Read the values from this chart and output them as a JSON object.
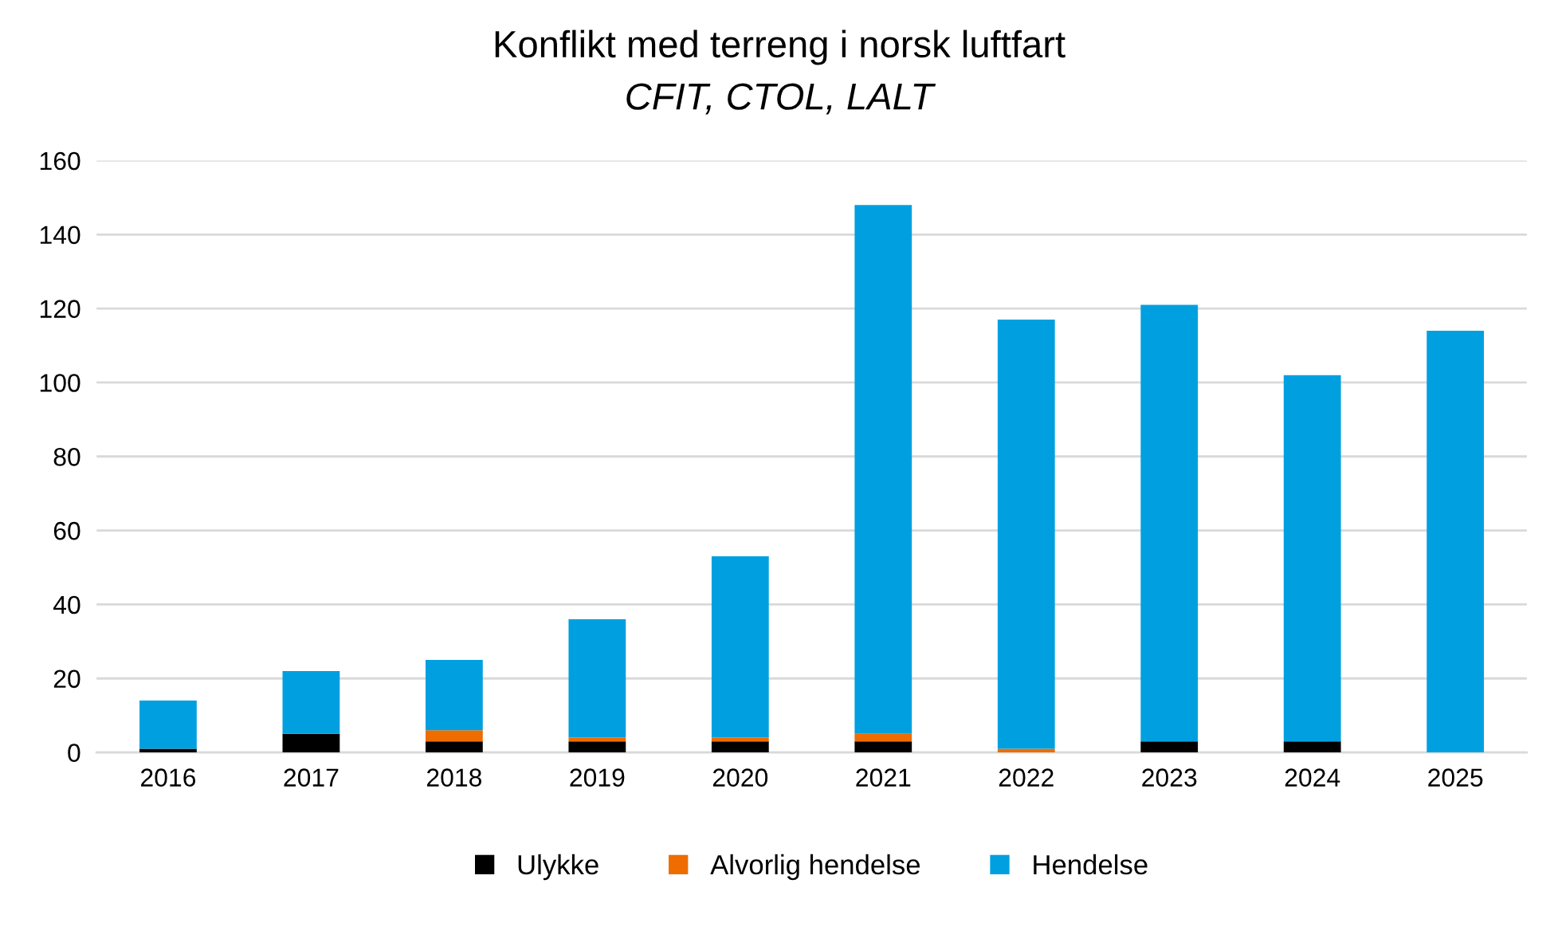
{
  "chart_data": {
    "type": "bar",
    "title": "Konflikt med terreng i norsk luftfart",
    "subtitle": "CFIT, CTOL, LALT",
    "categories": [
      "2016",
      "2017",
      "2018",
      "2019",
      "2020",
      "2021",
      "2022",
      "2023",
      "2024",
      "2025"
    ],
    "series": [
      {
        "name": "Ulykke",
        "color": "#000000",
        "values": [
          1,
          5,
          3,
          3,
          3,
          3,
          0,
          3,
          3,
          0
        ]
      },
      {
        "name": "Alvorlig hendelse",
        "color": "#ee6c00",
        "values": [
          0,
          0,
          3,
          1,
          1,
          2,
          1,
          0,
          0,
          0
        ]
      },
      {
        "name": "Hendelse",
        "color": "#00a0e0",
        "values": [
          13,
          17,
          19,
          32,
          49,
          143,
          116,
          118,
          99,
          114
        ]
      }
    ],
    "stacked": true,
    "ylim": [
      0,
      160
    ],
    "yticks": [
      0,
      20,
      40,
      60,
      80,
      100,
      120,
      140,
      160
    ],
    "grid": "y",
    "legend": "bottom"
  }
}
